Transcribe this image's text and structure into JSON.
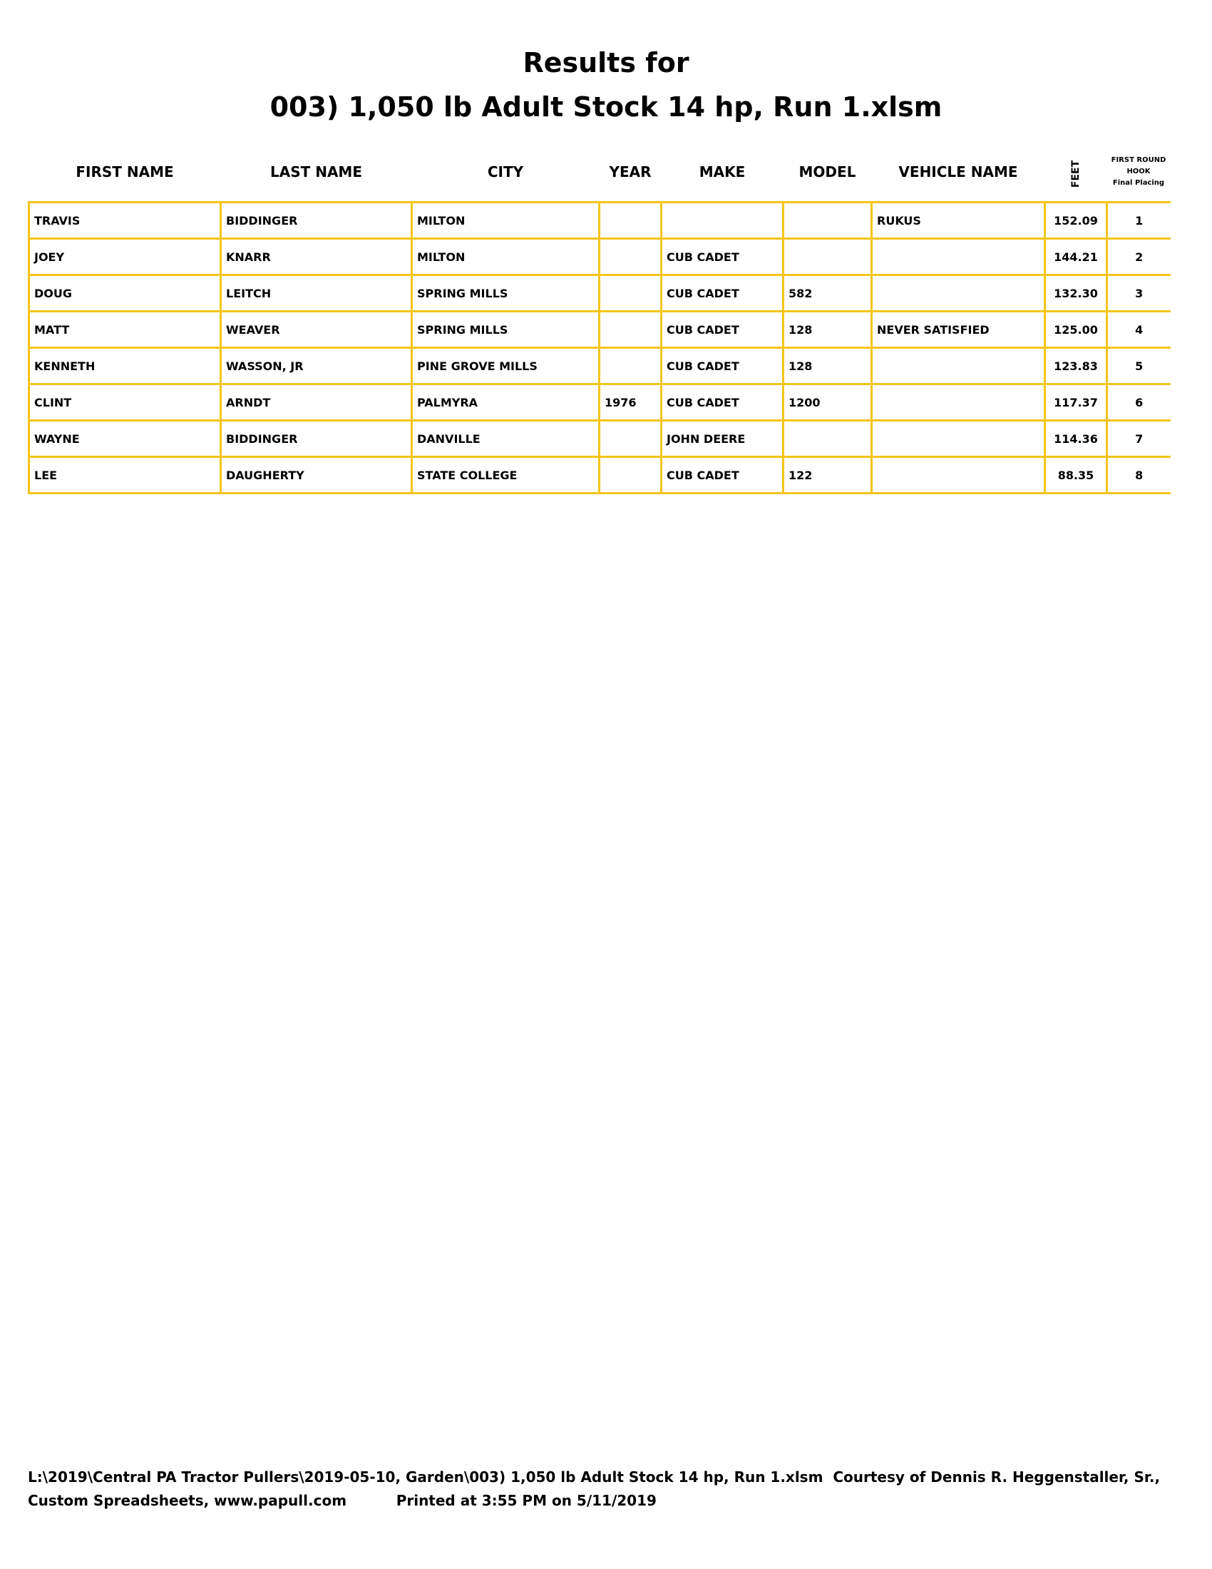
{
  "title_line1": "Results for",
  "title_line2": "003) 1,050 lb Adult Stock 14 hp, Run 1.xlsm",
  "columns": {
    "first_name": "FIRST NAME",
    "last_name": "LAST NAME",
    "city": "CITY",
    "year": "YEAR",
    "make": "MAKE",
    "model": "MODEL",
    "vehicle_name": "VEHICLE NAME",
    "feet": "FEET",
    "placing_1": "FIRST ROUND",
    "placing_2": "HOOK",
    "placing_3": "Final Placing"
  },
  "rows": [
    {
      "first": "TRAVIS",
      "last": "BIDDINGER",
      "city": "MILTON",
      "year": "",
      "make": "",
      "model": "",
      "vehicle": "RUKUS",
      "feet": "152.09",
      "place": "1"
    },
    {
      "first": "JOEY",
      "last": "KNARR",
      "city": "MILTON",
      "year": "",
      "make": "CUB CADET",
      "model": "",
      "vehicle": "",
      "feet": "144.21",
      "place": "2"
    },
    {
      "first": "DOUG",
      "last": "LEITCH",
      "city": "SPRING MILLS",
      "year": "",
      "make": "CUB CADET",
      "model": "582",
      "vehicle": "",
      "feet": "132.30",
      "place": "3"
    },
    {
      "first": "MATT",
      "last": "WEAVER",
      "city": "SPRING MILLS",
      "year": "",
      "make": "CUB CADET",
      "model": "128",
      "vehicle": "NEVER SATISFIED",
      "feet": "125.00",
      "place": "4"
    },
    {
      "first": "KENNETH",
      "last": "WASSON, JR",
      "city": "PINE GROVE MILLS",
      "year": "",
      "make": "CUB CADET",
      "model": "128",
      "vehicle": "",
      "feet": "123.83",
      "place": "5"
    },
    {
      "first": "CLINT",
      "last": "ARNDT",
      "city": "PALMYRA",
      "year": "1976",
      "make": "CUB CADET",
      "model": "1200",
      "vehicle": "",
      "feet": "117.37",
      "place": "6"
    },
    {
      "first": "WAYNE",
      "last": "BIDDINGER",
      "city": "DANVILLE",
      "year": "",
      "make": "JOHN DEERE",
      "model": "",
      "vehicle": "",
      "feet": "114.36",
      "place": "7"
    },
    {
      "first": "LEE",
      "last": "DAUGHERTY",
      "city": "STATE COLLEGE",
      "year": "",
      "make": "CUB CADET",
      "model": "122",
      "vehicle": "",
      "feet": "88.35",
      "place": "8"
    }
  ],
  "footer_line1": "L:\\2019\\Central PA Tractor Pullers\\2019-05-10, Garden\\003) 1,050 lb Adult Stock 14 hp, Run 1.xlsm  Courtesy of Dennis R. Heggenstaller, Sr.,",
  "footer_line2_left": "Custom Spreadsheets, www.papull.com",
  "footer_line2_right": "Printed at 3:55 PM on 5/11/2019",
  "colors": {
    "grid": "#f5c518"
  }
}
